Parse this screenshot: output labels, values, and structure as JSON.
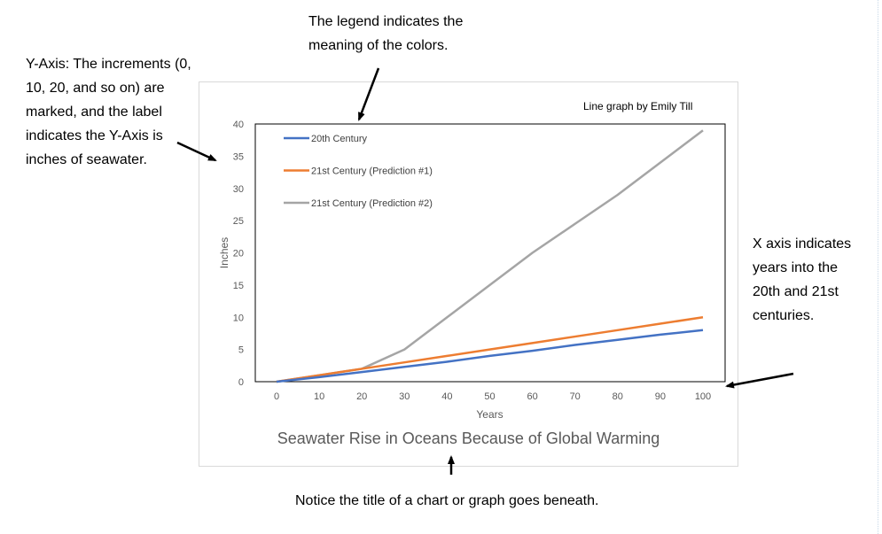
{
  "annotations": {
    "legend_note": "The legend indicates the meaning of the colors.",
    "y_axis_note": "Y-Axis: The increments (0, 10, 20, and so on) are marked, and the label indicates the Y-Axis is inches of seawater.",
    "x_axis_note": "X axis indicates years into the 20th and 21st centuries.",
    "title_note": "Notice the title of a chart or graph goes beneath."
  },
  "credit": "Line graph by Emily Till",
  "chart_data": {
    "type": "line",
    "title": "Seawater Rise in Oceans Because of Global Warming",
    "xlabel": "Years",
    "ylabel": "Inches",
    "x": [
      0,
      10,
      20,
      30,
      40,
      50,
      60,
      70,
      80,
      90,
      100
    ],
    "xlim": [
      0,
      100
    ],
    "ylim": [
      0,
      40
    ],
    "yticks": [
      0,
      5,
      10,
      15,
      20,
      25,
      30,
      35,
      40
    ],
    "legend_position": "top-left",
    "series": [
      {
        "name": "20th Century",
        "color": "#4472c4",
        "values": [
          0,
          0.7,
          1.5,
          2.3,
          3.1,
          4.0,
          4.8,
          5.7,
          6.5,
          7.3,
          8.0
        ]
      },
      {
        "name": "21st Century (Prediction #1)",
        "color": "#ed7d31",
        "values": [
          0,
          1,
          2,
          3,
          4,
          5,
          6,
          7,
          8,
          9,
          10
        ]
      },
      {
        "name": "21st Century (Prediction #2)",
        "color": "#a5a5a5",
        "values": [
          0,
          1,
          2,
          5,
          10,
          15,
          20,
          24.5,
          29,
          34,
          39
        ]
      }
    ]
  }
}
